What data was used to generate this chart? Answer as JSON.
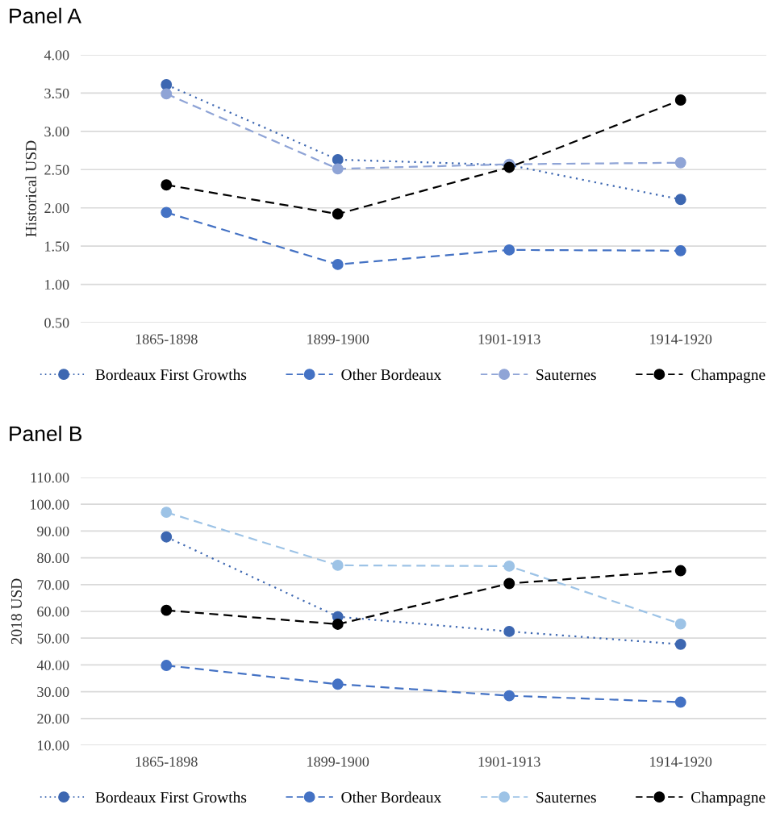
{
  "chart_data": [
    {
      "type": "line",
      "title": "Panel A",
      "ylabel": "Historical USD",
      "categories": [
        "1865-1898",
        "1899-1900",
        "1901-1913",
        "1914-1920"
      ],
      "ylim": [
        0.5,
        4.0
      ],
      "yticks": [
        {
          "value": 0.5,
          "label": "0.50"
        },
        {
          "value": 1.0,
          "label": "1.00"
        },
        {
          "value": 1.5,
          "label": "1.50"
        },
        {
          "value": 2.0,
          "label": "2.00"
        },
        {
          "value": 2.5,
          "label": "2.50"
        },
        {
          "value": 3.0,
          "label": "3.00"
        },
        {
          "value": 3.5,
          "label": "3.50"
        },
        {
          "value": 4.0,
          "label": "4.00"
        }
      ],
      "grid": "y",
      "legend": "bottom",
      "marker": "circle",
      "series": [
        {
          "name": "Bordeaux First Growths",
          "color": "#3d67b1",
          "line_style": "dotted",
          "values": [
            3.61,
            2.63,
            2.56,
            2.11
          ]
        },
        {
          "name": "Other Bordeaux",
          "color": "#4472c4",
          "line_style": "dashed",
          "values": [
            1.94,
            1.26,
            1.45,
            1.44
          ]
        },
        {
          "name": "Sauternes",
          "color": "#8fa4d6",
          "line_style": "dashed",
          "values": [
            3.49,
            2.51,
            2.57,
            2.59
          ]
        },
        {
          "name": "Champagne",
          "color": "#000000",
          "line_style": "dashed",
          "values": [
            2.3,
            1.92,
            2.53,
            3.41
          ]
        }
      ]
    },
    {
      "type": "line",
      "title": "Panel B",
      "ylabel": "2018 USD",
      "categories": [
        "1865-1898",
        "1899-1900",
        "1901-1913",
        "1914-1920"
      ],
      "ylim": [
        10,
        110
      ],
      "yticks": [
        {
          "value": 10,
          "label": "10.00"
        },
        {
          "value": 20,
          "label": "20.00"
        },
        {
          "value": 30,
          "label": "30.00"
        },
        {
          "value": 40,
          "label": "40.00"
        },
        {
          "value": 50,
          "label": "50.00"
        },
        {
          "value": 60,
          "label": "60.00"
        },
        {
          "value": 70,
          "label": "70.00"
        },
        {
          "value": 80,
          "label": "80.00"
        },
        {
          "value": 90,
          "label": "90.00"
        },
        {
          "value": 100,
          "label": "100.00"
        },
        {
          "value": 110,
          "label": "110.00"
        }
      ],
      "grid": "y",
      "legend": "bottom",
      "marker": "circle",
      "series": [
        {
          "name": "Bordeaux First Growths",
          "color": "#3d67b1",
          "line_style": "dotted",
          "values": [
            87.8,
            58.0,
            52.5,
            47.7
          ]
        },
        {
          "name": "Other Bordeaux",
          "color": "#4472c4",
          "line_style": "dashed",
          "values": [
            39.8,
            32.8,
            28.5,
            26.1
          ]
        },
        {
          "name": "Sauternes",
          "color": "#9dc3e6",
          "line_style": "dashed",
          "values": [
            97.0,
            77.2,
            76.9,
            55.3
          ]
        },
        {
          "name": "Champagne",
          "color": "#000000",
          "line_style": "dashed",
          "values": [
            60.4,
            55.2,
            70.4,
            75.2
          ]
        }
      ]
    }
  ]
}
